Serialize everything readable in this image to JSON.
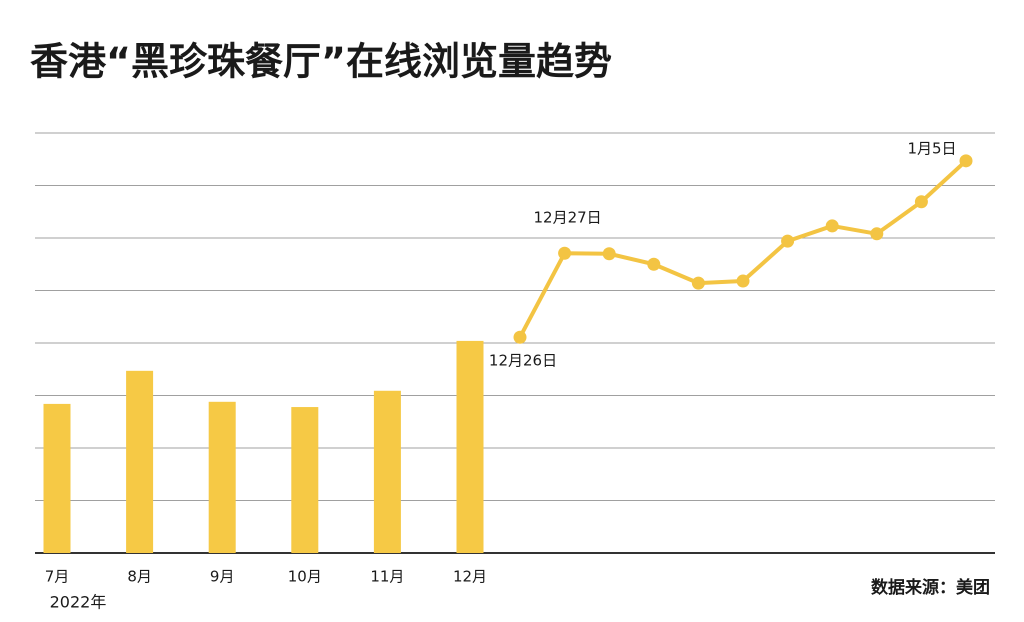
{
  "chart_data": [
    {
      "type": "bar",
      "title": "香港“黑珍珠餐厅”在线浏览量趋势",
      "categories": [
        "7月",
        "8月",
        "9月",
        "10月",
        "11月",
        "12月"
      ],
      "values": [
        2.84,
        3.47,
        2.88,
        2.78,
        3.09,
        4.04
      ],
      "color": "#f6c945",
      "x_label": "2022年",
      "source": "数据来源：美团",
      "ylim": [
        0,
        8
      ],
      "ygrid": [
        1,
        2,
        3,
        4,
        5,
        6,
        7,
        8
      ]
    },
    {
      "type": "line",
      "categories": [
        "12月26日",
        "12月27日",
        null,
        null,
        null,
        null,
        null,
        null,
        null,
        null,
        "1月5日"
      ],
      "values": [
        4.11,
        5.71,
        5.7,
        5.5,
        5.14,
        5.18,
        5.94,
        6.23,
        6.08,
        6.69,
        7.47
      ],
      "color": "#f3c443",
      "ylim": [
        0,
        8
      ]
    }
  ]
}
